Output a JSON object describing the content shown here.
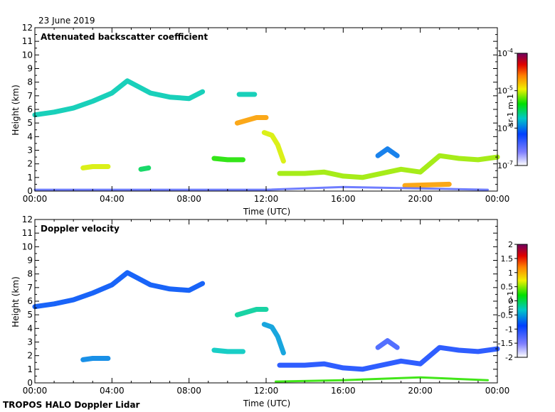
{
  "date_label": "23 June 2019",
  "footer_label": "TROPOS HALO Doppler Lidar",
  "chart_data": [
    {
      "type": "heatmap",
      "title": "Attenuated backscatter coefficient",
      "xlabel": "Time (UTC)",
      "ylabel": "Height (km)",
      "x_ticks": [
        "00:00",
        "04:00",
        "08:00",
        "12:00",
        "16:00",
        "20:00",
        "00:00"
      ],
      "x_range_hours": [
        0,
        24
      ],
      "y_ticks": [
        0,
        1,
        2,
        3,
        4,
        5,
        6,
        7,
        8,
        9,
        10,
        11,
        12
      ],
      "ylim": [
        0,
        12
      ],
      "colorbar": {
        "label": "sr-1 m-1",
        "scale": "log",
        "range": [
          1e-07,
          0.0001
        ],
        "tick_labels": [
          "10-4",
          "10-5",
          "10-6",
          "10-7"
        ],
        "tick_values": [
          0.0001,
          1e-05,
          1e-06,
          1e-07
        ]
      },
      "features": [
        {
          "t": [
            0.0,
            1.0,
            2.0,
            3.0,
            4.0,
            4.8,
            6.0,
            7.0,
            8.0,
            8.7
          ],
          "h": [
            5.6,
            5.8,
            6.1,
            6.6,
            7.2,
            8.1,
            7.2,
            6.9,
            6.8,
            7.3
          ],
          "value": 2e-06,
          "kind": "layer"
        },
        {
          "t": [
            2.5,
            3.0,
            3.5,
            3.8
          ],
          "h": [
            1.7,
            1.8,
            1.8,
            1.8
          ],
          "value": 1e-05,
          "kind": "layer"
        },
        {
          "t": [
            5.5,
            5.9
          ],
          "h": [
            1.6,
            1.7
          ],
          "value": 3e-06,
          "kind": "layer"
        },
        {
          "t": [
            9.3,
            10.0,
            10.8
          ],
          "h": [
            2.4,
            2.3,
            2.3
          ],
          "value": 5e-06,
          "kind": "layer"
        },
        {
          "t": [
            10.5,
            11.5,
            12.0
          ],
          "h": [
            5.0,
            5.4,
            5.4
          ],
          "value": 2e-05,
          "kind": "layer"
        },
        {
          "t": [
            10.6,
            11.4
          ],
          "h": [
            7.1,
            7.1
          ],
          "value": 2e-06,
          "kind": "layer"
        },
        {
          "t": [
            11.9,
            12.3,
            12.6,
            12.9
          ],
          "h": [
            4.3,
            4.1,
            3.4,
            2.2
          ],
          "value": 1e-05,
          "kind": "layer"
        },
        {
          "t": [
            12.7,
            14.0,
            15.0,
            16.0,
            17.0,
            18.0,
            19.0,
            20.0,
            21.0,
            22.0,
            23.0,
            24.0
          ],
          "h": [
            1.3,
            1.3,
            1.4,
            1.1,
            1.0,
            1.3,
            1.6,
            1.4,
            2.6,
            2.4,
            2.3,
            2.5
          ],
          "value": 8e-06,
          "kind": "layer"
        },
        {
          "t": [
            17.8,
            18.3,
            18.8
          ],
          "h": [
            2.6,
            3.1,
            2.6
          ],
          "value": 1e-06,
          "kind": "layer"
        },
        {
          "t": [
            19.2,
            21.5
          ],
          "h": [
            0.4,
            0.5
          ],
          "value": 2e-05,
          "kind": "layer"
        },
        {
          "t": [
            0.0,
            12.0,
            16.0,
            20.0,
            23.5
          ],
          "h": [
            0.1,
            0.1,
            0.3,
            0.2,
            0.1
          ],
          "value": 3e-07,
          "kind": "surface"
        }
      ]
    },
    {
      "type": "heatmap",
      "title": "Doppler velocity",
      "xlabel": "Time (UTC)",
      "ylabel": "Height (km)",
      "x_ticks": [
        "00:00",
        "04:00",
        "08:00",
        "12:00",
        "16:00",
        "20:00",
        "00:00"
      ],
      "x_range_hours": [
        0,
        24
      ],
      "y_ticks": [
        0,
        1,
        2,
        3,
        4,
        5,
        6,
        7,
        8,
        9,
        10,
        11,
        12
      ],
      "ylim": [
        0,
        12
      ],
      "colorbar": {
        "label": "m s-1",
        "scale": "linear",
        "range": [
          -2,
          2
        ],
        "tick_labels": [
          "2",
          "1.5",
          "1",
          "0.5",
          "0",
          "-0.5",
          "-1",
          "-1.5",
          "-2"
        ],
        "tick_values": [
          2,
          1.5,
          1,
          0.5,
          0,
          -0.5,
          -1,
          -1.5,
          -2
        ]
      },
      "features": [
        {
          "t": [
            0.0,
            1.0,
            2.0,
            3.0,
            4.0,
            4.8,
            6.0,
            7.0,
            8.0,
            8.7
          ],
          "h": [
            5.6,
            5.8,
            6.1,
            6.6,
            7.2,
            8.1,
            7.2,
            6.9,
            6.8,
            7.3
          ],
          "value": -0.8,
          "kind": "layer"
        },
        {
          "t": [
            2.5,
            3.0,
            3.5,
            3.8
          ],
          "h": [
            1.7,
            1.8,
            1.8,
            1.8
          ],
          "value": -0.6,
          "kind": "layer"
        },
        {
          "t": [
            9.3,
            10.0,
            10.8
          ],
          "h": [
            2.4,
            2.3,
            2.3
          ],
          "value": -0.3,
          "kind": "layer"
        },
        {
          "t": [
            10.5,
            11.5,
            12.0
          ],
          "h": [
            5.0,
            5.4,
            5.4
          ],
          "value": -0.2,
          "kind": "layer"
        },
        {
          "t": [
            11.9,
            12.3,
            12.6,
            12.9
          ],
          "h": [
            4.3,
            4.1,
            3.4,
            2.2
          ],
          "value": -0.5,
          "kind": "layer"
        },
        {
          "t": [
            12.7,
            14.0,
            15.0,
            16.0,
            17.0,
            18.0,
            19.0,
            20.0,
            21.0,
            22.0,
            23.0,
            24.0
          ],
          "h": [
            1.3,
            1.3,
            1.4,
            1.1,
            1.0,
            1.3,
            1.6,
            1.4,
            2.6,
            2.4,
            2.3,
            2.5
          ],
          "value": -1.0,
          "kind": "layer"
        },
        {
          "t": [
            17.8,
            18.3,
            18.8
          ],
          "h": [
            2.6,
            3.1,
            2.6
          ],
          "value": -1.2,
          "kind": "layer"
        },
        {
          "t": [
            12.5,
            16.0,
            20.0,
            23.5
          ],
          "h": [
            0.1,
            0.2,
            0.4,
            0.2
          ],
          "value": 0.3,
          "kind": "surface"
        }
      ]
    }
  ]
}
